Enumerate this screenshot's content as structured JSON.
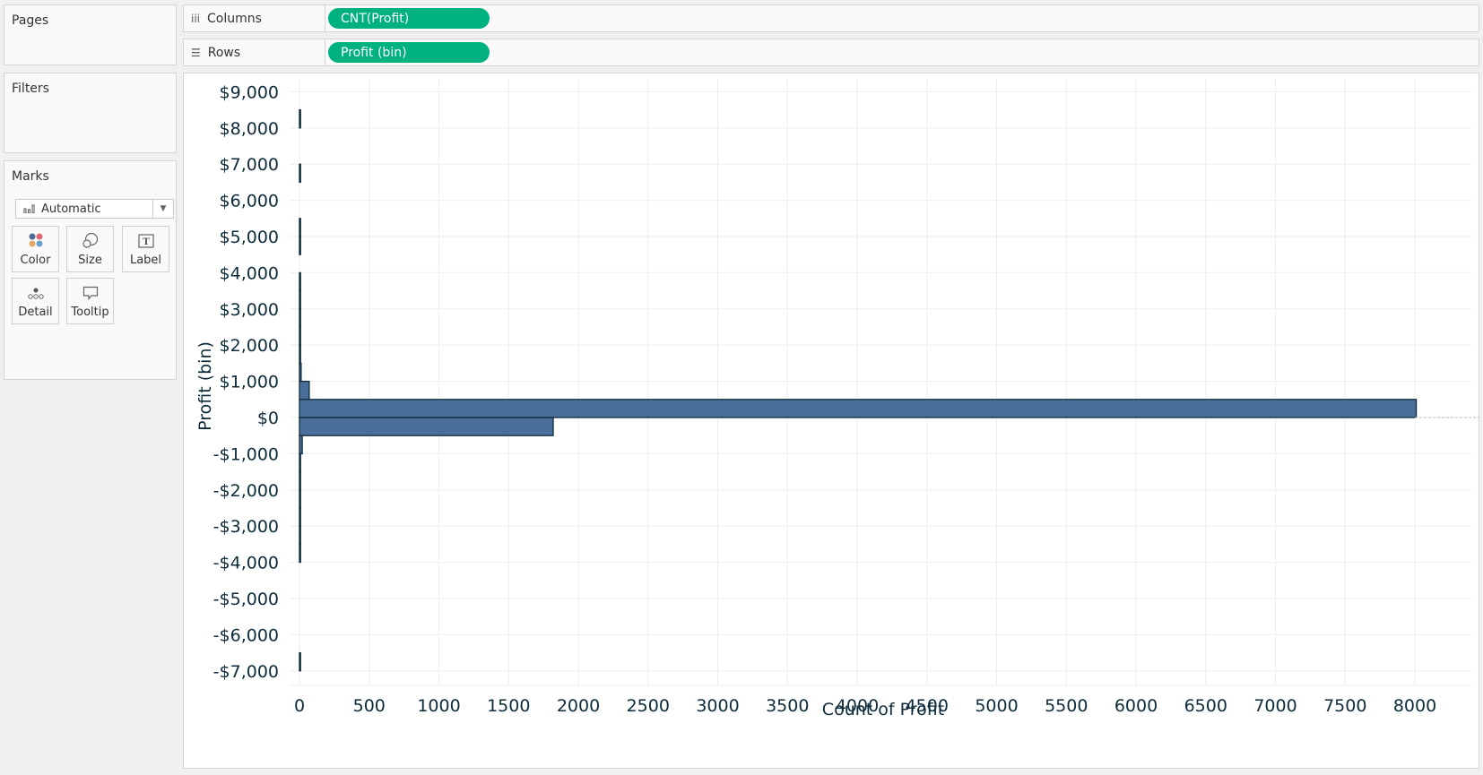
{
  "sidebar": {
    "pages": {
      "title": "Pages"
    },
    "filters": {
      "title": "Filters"
    },
    "marks": {
      "title": "Marks",
      "mark_type": "Automatic",
      "buttons": [
        {
          "label": "Color",
          "icon": "color-dots-icon"
        },
        {
          "label": "Size",
          "icon": "size-circles-icon"
        },
        {
          "label": "Label",
          "icon": "text-label-icon"
        },
        {
          "label": "Detail",
          "icon": "detail-dots-icon"
        },
        {
          "label": "Tooltip",
          "icon": "speech-bubble-icon"
        }
      ]
    }
  },
  "shelves": {
    "columns": {
      "label": "Columns",
      "icon": "columns-icon",
      "pill": "CNT(Profit)"
    },
    "rows": {
      "label": "Rows",
      "icon": "rows-icon",
      "pill": "Profit (bin)"
    }
  },
  "colors": {
    "pill": "#00b180",
    "bar_fill": "#4a6f9a",
    "bar_stroke": "#0d2b3a",
    "axis_text": "#0d2b3a",
    "gridline": "#eeeeee"
  },
  "chart_data": {
    "type": "bar",
    "orientation": "horizontal",
    "title": "",
    "xlabel": "Count of Profit",
    "ylabel": "Profit (bin)",
    "xlim": [
      0,
      8400
    ],
    "ylim": [
      -7800,
      9300
    ],
    "grid": true,
    "legend": null,
    "x_ticks": [
      "0",
      "500",
      "1000",
      "1500",
      "2000",
      "2500",
      "3000",
      "3500",
      "4000",
      "4500",
      "5000",
      "5500",
      "6000",
      "6500",
      "7000",
      "7500",
      "8000"
    ],
    "y_ticks": [
      "$9,000",
      "$8,000",
      "$7,000",
      "$6,000",
      "$5,000",
      "$4,000",
      "$3,000",
      "$2,000",
      "$1,000",
      "$0",
      "-$1,000",
      "-$2,000",
      "-$3,000",
      "-$4,000",
      "-$5,000",
      "-$6,000",
      "-$7,000"
    ],
    "bin_size": 500,
    "categories": [
      "-$7,000",
      "-$4,000",
      "-$3,500",
      "-$3,000",
      "-$2,500",
      "-$2,000",
      "-$1,500",
      "-$1,000",
      "-$500",
      "$0",
      "$500",
      "$1,000",
      "$1,500",
      "$2,000",
      "$2,500",
      "$3,000",
      "$3,500",
      "$4,500",
      "$5,000",
      "$6,500",
      "$8,000"
    ],
    "values": [
      1,
      1,
      1,
      1,
      1,
      2,
      3,
      20,
      1820,
      8010,
      70,
      12,
      3,
      2,
      1,
      1,
      1,
      1,
      1,
      1,
      1
    ],
    "reference_line": {
      "value": 0,
      "style": "dotted",
      "axis": "y"
    }
  }
}
